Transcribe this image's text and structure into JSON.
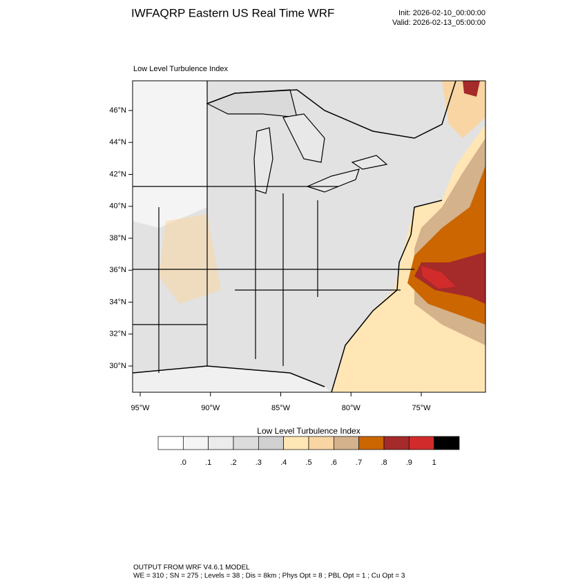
{
  "header": {
    "title": "IWFAQRP Eastern US Real Time WRF",
    "init": "Init: 2026-02-10_00:00:00",
    "valid": "Valid: 2026-02-13_05:00:00"
  },
  "map": {
    "panel_label": "Low Level Turbulence Index",
    "lat_labels": [
      "46°N",
      "44°N",
      "42°N",
      "40°N",
      "38°N",
      "36°N",
      "34°N",
      "32°N",
      "30°N"
    ],
    "lon_labels": [
      "95°W",
      "90°W",
      "85°W",
      "80°W",
      "75°W"
    ]
  },
  "colorbar": {
    "title": "Low Level Turbulence Index",
    "labels": [
      ".0",
      ".1",
      ".2",
      ".3",
      ".4",
      ".5",
      ".6",
      ".7",
      ".8",
      ".9",
      "1"
    ],
    "colors": [
      "#ffffff",
      "#f5f5f5",
      "#ebebeb",
      "#dcdcdc",
      "#d0d0d0",
      "#ffe6b4",
      "#f8d5a2",
      "#d4b28c",
      "#cc6600",
      "#a52a2a",
      "#d22b2b",
      "#000000"
    ]
  },
  "footer": {
    "line1": "OUTPUT FROM WRF V4.6.1 MODEL",
    "line2": "WE = 310 ; SN = 275 ; Levels = 38 ; Dis = 8km ; Phys Opt = 8 ; PBL Opt = 1 ; Cu Opt = 3"
  }
}
